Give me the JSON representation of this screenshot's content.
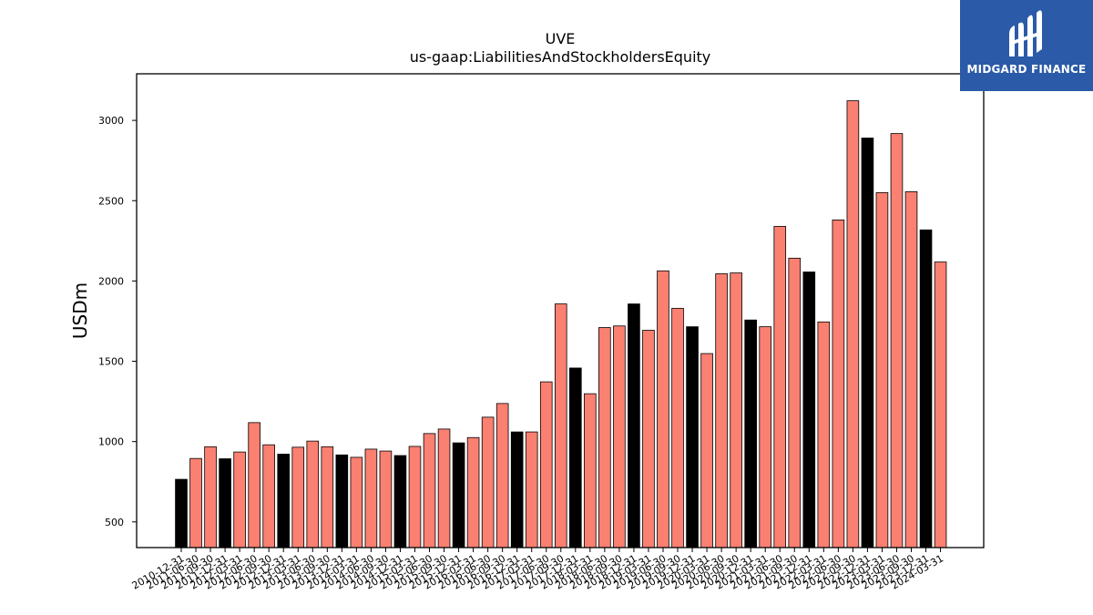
{
  "chart_data": {
    "type": "bar",
    "title": "UVE",
    "subtitle": "us-gaap:LiabilitiesAndStockholdersEquity",
    "xlabel": "",
    "ylabel": "USDm",
    "ylim": [
      340,
      3290
    ],
    "yticks": [
      500,
      1000,
      1500,
      2000,
      2500,
      3000
    ],
    "grid": false,
    "categories": [
      "2010-12-31",
      "2011-06-30",
      "2011-09-30",
      "2011-12-31",
      "2012-03-31",
      "2012-06-30",
      "2012-09-30",
      "2012-12-31",
      "2013-03-31",
      "2013-06-30",
      "2013-09-30",
      "2013-12-31",
      "2014-03-31",
      "2014-06-30",
      "2014-09-30",
      "2014-12-31",
      "2015-03-31",
      "2015-06-30",
      "2015-09-30",
      "2015-12-31",
      "2016-03-31",
      "2016-06-30",
      "2016-09-30",
      "2016-12-31",
      "2017-03-31",
      "2017-06-30",
      "2017-09-30",
      "2017-12-31",
      "2018-03-31",
      "2018-06-30",
      "2018-09-30",
      "2018-12-31",
      "2019-03-31",
      "2019-06-30",
      "2019-09-30",
      "2019-12-31",
      "2020-03-31",
      "2020-06-30",
      "2020-09-30",
      "2020-12-31",
      "2021-03-31",
      "2021-06-30",
      "2021-09-30",
      "2021-12-31",
      "2022-03-31",
      "2022-06-30",
      "2022-09-30",
      "2022-12-31",
      "2023-03-31",
      "2023-06-30",
      "2023-09-30",
      "2023-12-31",
      "2024-03-31"
    ],
    "values": [
      765,
      895,
      968,
      893,
      935,
      1118,
      980,
      922,
      965,
      1003,
      968,
      917,
      902,
      953,
      941,
      913,
      970,
      1050,
      1078,
      992,
      1025,
      1152,
      1237,
      1060,
      1060,
      1372,
      1857,
      1458,
      1298,
      1710,
      1720,
      1857,
      1693,
      2063,
      1830,
      1715,
      1548,
      2045,
      2050,
      1757,
      1715,
      2340,
      2142,
      2056,
      1745,
      2380,
      3122,
      2890,
      2550,
      2918,
      2556,
      2318,
      2118
    ],
    "year_end_color": "#000000",
    "quarter_color": "#fa8072"
  },
  "logo": {
    "text": "MIDGARD FINANCE",
    "color": "#2a5aa8"
  }
}
